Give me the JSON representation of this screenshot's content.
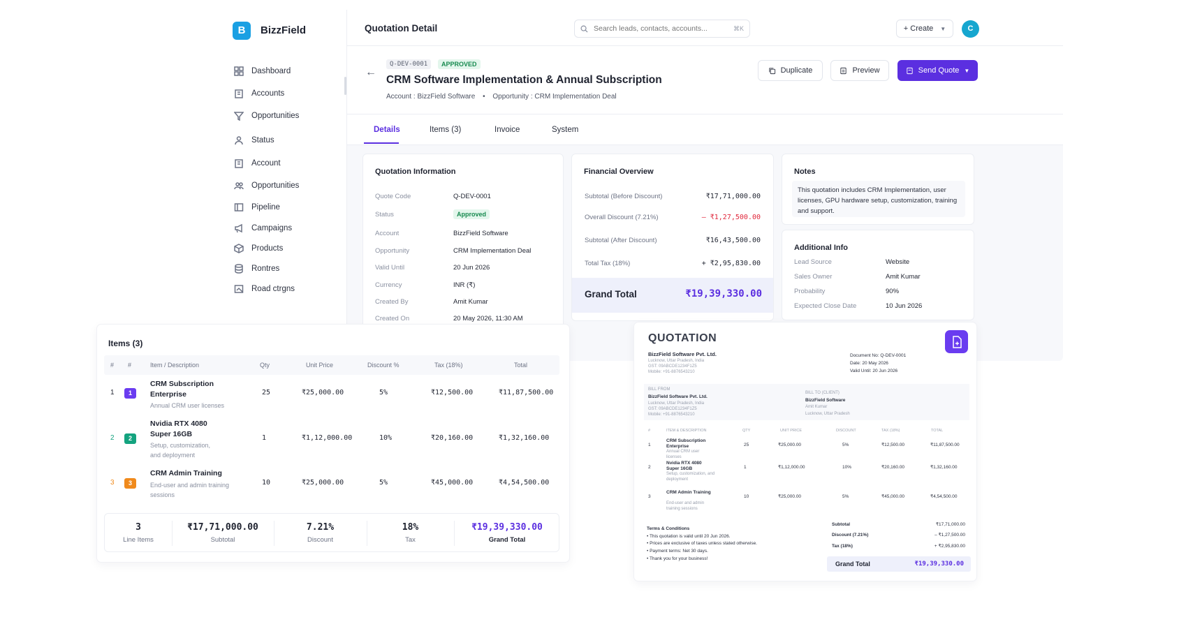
{
  "app": {
    "brand_letter": "B",
    "brand": "BizzField"
  },
  "sidebar": {
    "items": [
      {
        "label": "Dashboard",
        "icon": "dashboard-icon"
      },
      {
        "label": "Accounts",
        "icon": "building-icon"
      },
      {
        "label": "Opportunities",
        "icon": "funnel-icon"
      },
      {
        "label": "Status",
        "icon": "user-icon"
      },
      {
        "label": "Account",
        "icon": "building-icon"
      },
      {
        "label": "Opportunities",
        "icon": "users-icon"
      },
      {
        "label": "Pipeline",
        "icon": "pipeline-icon"
      },
      {
        "label": "Campaigns",
        "icon": "megaphone-icon"
      },
      {
        "label": "Products",
        "icon": "box-icon"
      },
      {
        "label": "Rontres",
        "icon": "database-icon"
      },
      {
        "label": "Road ctrgns",
        "icon": "image-icon"
      }
    ]
  },
  "topbar": {
    "title": "Quotation Detail",
    "search_placeholder": "Search leads, contacts, accounts...",
    "search_kbd": "⌘K",
    "create_label": "+ Create",
    "avatar": "C"
  },
  "quote": {
    "code": "Q-DEV-0001",
    "status": "APPROVED",
    "title": "CRM Software Implementation & Annual Subscription",
    "account_line": "Account : BizzField Software",
    "opportunity_line": "Opportunity : CRM Implementation Deal",
    "duplicate": "Duplicate",
    "preview": "Preview",
    "send": "Send Quote"
  },
  "tabs": [
    "Details",
    "Items (3)",
    "Invoice",
    "System"
  ],
  "info": {
    "heading": "Quotation Information",
    "rows": [
      {
        "label": "Quote Code",
        "value": "Q-DEV-0001"
      },
      {
        "label": "Status",
        "value": "Approved"
      },
      {
        "label": "Account",
        "value": "BizzField Software"
      },
      {
        "label": "Opportunity",
        "value": "CRM Implementation Deal"
      },
      {
        "label": "Valid Until",
        "value": "20 Jun 2026"
      },
      {
        "label": "Currency",
        "value": "INR (₹)"
      },
      {
        "label": "Created By",
        "value": "Amit Kumar"
      },
      {
        "label": "Created On",
        "value": "20 May 2026, 11:30 AM"
      }
    ]
  },
  "financial": {
    "heading": "Financial Overview",
    "rows": [
      {
        "label": "Subtotal (Before Discount)",
        "value": "₹17,71,000.00"
      },
      {
        "label": "Overall Discount (7.21%)",
        "value": "– ₹1,27,500.00"
      },
      {
        "label": "Subtotal (After Discount)",
        "value": "₹16,43,500.00"
      },
      {
        "label": "Total Tax (18%)",
        "value": "+ ₹2,95,830.00"
      }
    ],
    "grand_label": "Grand Total",
    "grand_value": "₹19,39,330.00",
    "discount_color": "#e0263a",
    "accent": "#5b2fe0"
  },
  "notes": {
    "heading": "Notes",
    "text": "This quotation includes CRM Implementation, user licenses, GPU hardware setup, customization, training and support."
  },
  "additional": {
    "heading": "Additional Info",
    "rows": [
      {
        "label": "Lead Source",
        "value": "Website"
      },
      {
        "label": "Sales Owner",
        "value": "Amit Kumar"
      },
      {
        "label": "Probability",
        "value": "90%"
      },
      {
        "label": "Expected Close Date",
        "value": "10 Jun 2026"
      }
    ]
  },
  "items": {
    "heading": "Items (3)",
    "columns": [
      "#",
      "#",
      "Item / Description",
      "Qty",
      "Unit Price",
      "Discount %",
      "Tax (18%)",
      "Total"
    ],
    "rows": [
      {
        "n": "1",
        "badge": "1",
        "name1": "CRM Subscription",
        "name2": "Enterprise",
        "desc1": "Annual CRM user licenses",
        "desc2": "",
        "qty": "25",
        "price": "₹25,000.00",
        "disc": "5%",
        "tax": "₹12,500.00",
        "total": "₹11,87,500.00",
        "color": "#6a3cf0",
        "ncolor": "#1f2330"
      },
      {
        "n": "2",
        "badge": "2",
        "name1": "Nvidia RTX 4080",
        "name2": "Super 16GB",
        "desc1": "Setup, customization,",
        "desc2": "and deployment",
        "qty": "1",
        "price": "₹1,12,000.00",
        "disc": "10%",
        "tax": "₹20,160.00",
        "total": "₹1,32,160.00",
        "color": "#14a37f",
        "ncolor": "#14a37f"
      },
      {
        "n": "3",
        "badge": "3",
        "name1": "CRM Admin Training",
        "name2": "",
        "desc1": "End-user and admin training",
        "desc2": "sessions",
        "qty": "10",
        "price": "₹25,000.00",
        "disc": "5%",
        "tax": "₹45,000.00",
        "total": "₹4,54,500.00",
        "color": "#f08a1c",
        "ncolor": "#f08a1c"
      }
    ],
    "summary": [
      {
        "value": "3",
        "label": "Line Items"
      },
      {
        "value": "₹17,71,000.00",
        "label": "Subtotal"
      },
      {
        "value": "7.21%",
        "label": "Discount"
      },
      {
        "value": "18%",
        "label": "Tax"
      },
      {
        "value": "₹19,39,330.00",
        "label": "Grand Total"
      }
    ]
  },
  "pdf": {
    "title": "QUOTATION",
    "company": "BizzField Software Pvt. Ltd.",
    "company_lines": [
      "Lucknow, Uttar Pradesh, India",
      "GST: 09ABCDE1234F1Z5",
      "Mobile: +91-8876543210"
    ],
    "doc_no": "Document No: Q-DEV-0001",
    "date": "Date: 20 May 2026",
    "valid": "Valid Until: 20 Jun 2026",
    "bill_from": "BILL FROM",
    "from_name": "BizzField Software Pvt. Ltd.",
    "from_lines": [
      "Lucknow, Uttar Pradesh, India",
      "GST: 09ABCDE1234F1Z5",
      "Mobile: +91-8876543210"
    ],
    "bill_to": "BILL TO (CLIENT)",
    "to_name": "BizzField Software",
    "to_lines": [
      "Amit Kumar",
      "Lucknow, Uttar Pradesh"
    ],
    "cols": [
      "#",
      "ITEM & DESCRIPTION",
      "QTY",
      "UNIT PRICE",
      "DISCOUNT",
      "TAX (18%)",
      "TOTAL"
    ],
    "rows": [
      {
        "n": "1",
        "name": "CRM Subscription Enterprise",
        "desc": "Annual CRM user licenses",
        "qty": "25",
        "price": "₹25,000.00",
        "disc": "5%",
        "tax": "₹12,500.00",
        "total": "₹11,87,500.00"
      },
      {
        "n": "2",
        "name": "Nvidia RTX 4080 Super 16GB",
        "desc": "Setup, customization, and deployment",
        "qty": "1",
        "price": "₹1,12,000.00",
        "disc": "10%",
        "tax": "₹20,160.00",
        "total": "₹1,32,160.00"
      },
      {
        "n": "3",
        "name": "CRM Admin Training",
        "desc": "End-user and admin training sessions",
        "qty": "10",
        "price": "₹25,000.00",
        "disc": "5%",
        "tax": "₹45,000.00",
        "total": "₹4,54,500.00"
      }
    ],
    "terms_title": "Terms & Conditions",
    "terms": [
      "• This quotation is valid until 20 Jun 2026.",
      "• Prices are exclusive of taxes unless stated otherwise.",
      "• Payment terms: Net 30 days.",
      "• Thank you for your business!"
    ],
    "totals": [
      {
        "label": "Subtotal",
        "value": "₹17,71,000.00"
      },
      {
        "label": "Discount (7.21%)",
        "value": "– ₹1,27,500.00"
      },
      {
        "label": "Tax (18%)",
        "value": "+ ₹2,95,830.00"
      }
    ],
    "grand_label": "Grand Total",
    "grand_value": "₹19,39,330.00"
  }
}
